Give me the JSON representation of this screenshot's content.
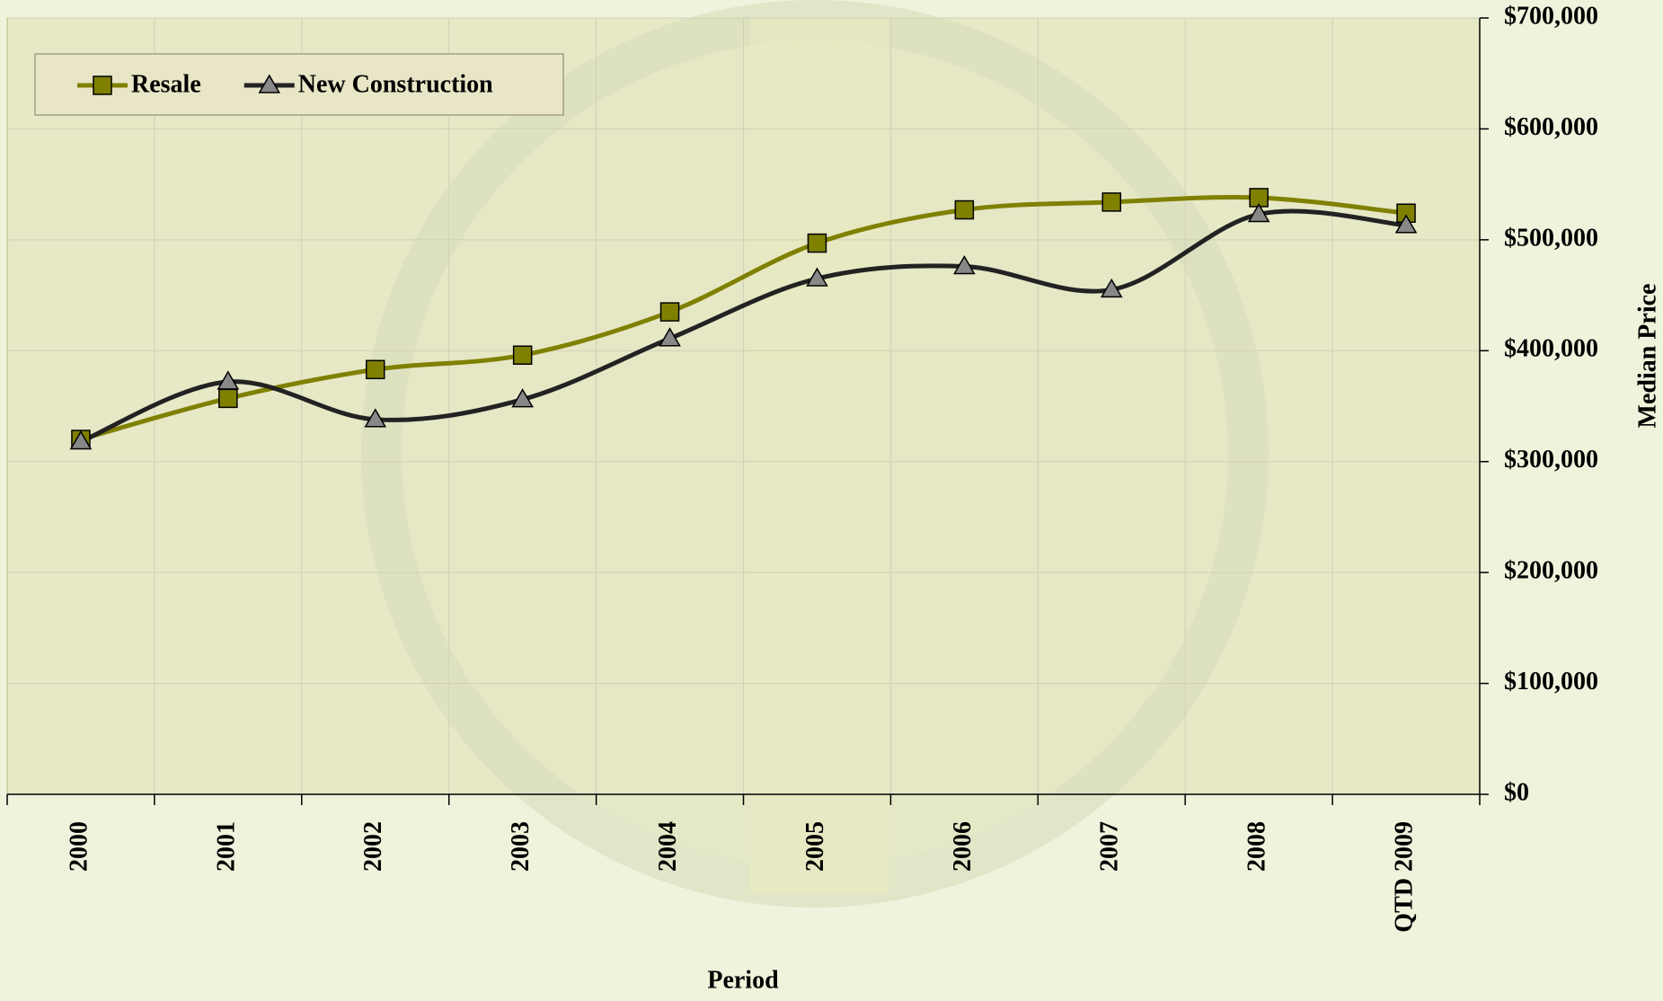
{
  "chart_data": {
    "type": "line",
    "categories": [
      "2000",
      "2001",
      "2002",
      "2003",
      "2004",
      "2005",
      "2006",
      "2007",
      "2008",
      "QTD 2009"
    ],
    "series": [
      {
        "name": "Resale",
        "color": "#808000",
        "marker": "square",
        "values": [
          320000,
          357000,
          383000,
          396000,
          435000,
          497000,
          527000,
          534000,
          538000,
          524000
        ]
      },
      {
        "name": "New Construction",
        "color": "#222222",
        "marker": "triangle",
        "values": [
          318000,
          372000,
          338000,
          356000,
          411000,
          465000,
          476000,
          455000,
          523000,
          513000
        ]
      }
    ],
    "xlabel": "Period",
    "ylabel": "Median Price",
    "ylim": [
      0,
      700000
    ],
    "yticks": [
      {
        "value": 0,
        "label": "$0"
      },
      {
        "value": 100000,
        "label": "$100,000"
      },
      {
        "value": 200000,
        "label": "$200,000"
      },
      {
        "value": 300000,
        "label": "$300,000"
      },
      {
        "value": 400000,
        "label": "$400,000"
      },
      {
        "value": 500000,
        "label": "$500,000"
      },
      {
        "value": 600000,
        "label": "$600,000"
      },
      {
        "value": 700000,
        "label": "$700,000"
      }
    ],
    "grid": true,
    "legend": "upper left"
  }
}
